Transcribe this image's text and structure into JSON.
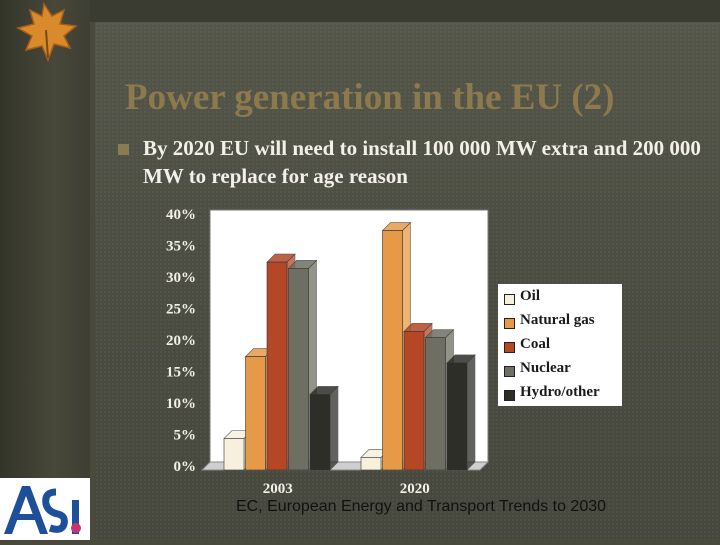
{
  "slide": {
    "title": "Power generation in the EU (2)",
    "bullet": "By 2020 EU will need to install 100 000 MW extra and 200 000 MW to replace for age reason",
    "source": "EC, European Energy and Transport Trends to 2030",
    "logo_text": "ASI",
    "colors": {
      "title": "#8c7a4d",
      "background": "#4c4d42",
      "text": "#f2f0e8"
    }
  },
  "chart_data": {
    "type": "bar",
    "categories": [
      "2003",
      "2020"
    ],
    "series": [
      {
        "name": "Oil",
        "values": [
          5,
          2
        ],
        "color": "#f6f0dc"
      },
      {
        "name": "Natural gas",
        "values": [
          18,
          38
        ],
        "color": "#e69a48"
      },
      {
        "name": "Coal",
        "values": [
          33,
          22
        ],
        "color": "#b34726"
      },
      {
        "name": "Nuclear",
        "values": [
          32,
          21
        ],
        "color": "#6e6f62"
      },
      {
        "name": "Hydro/other",
        "values": [
          12,
          17
        ],
        "color": "#2d2e27"
      }
    ],
    "y_ticks": [
      "0%",
      "5%",
      "10%",
      "15%",
      "20%",
      "25%",
      "30%",
      "35%",
      "40%"
    ],
    "ylim": [
      0,
      40
    ],
    "legend_position": "right",
    "grid": false
  }
}
